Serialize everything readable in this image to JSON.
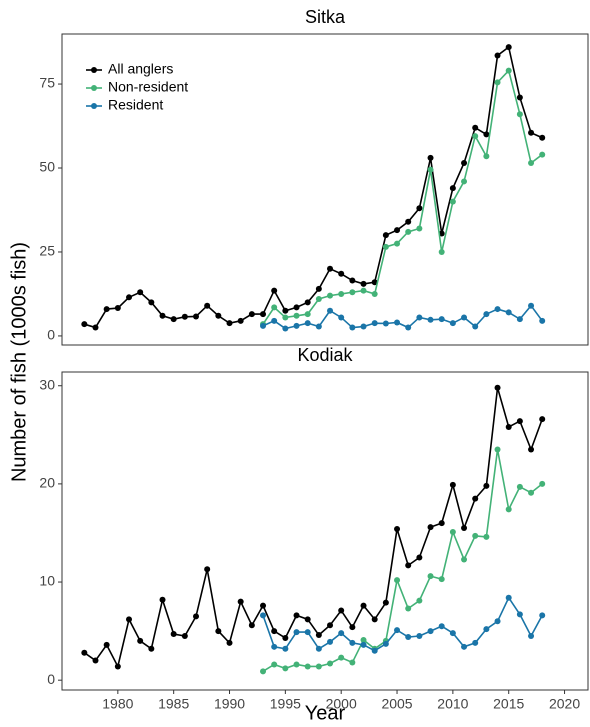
{
  "ylabel": "Number of fish (1000s fish)",
  "chart_data": [
    {
      "type": "line",
      "title": "Sitka",
      "legend": "top-left",
      "xlim": [
        1975,
        2022.1
      ],
      "ylim": [
        -2.7,
        89.9
      ],
      "yticks": [
        0,
        25,
        50,
        75
      ],
      "series": [
        {
          "name": "All anglers",
          "color": "#000000",
          "x": [
            1977,
            1978,
            1979,
            1980,
            1981,
            1982,
            1983,
            1984,
            1985,
            1986,
            1987,
            1988,
            1989,
            1990,
            1991,
            1992,
            1993,
            1994,
            1995,
            1996,
            1997,
            1998,
            1999,
            2000,
            2001,
            2002,
            2003,
            2004,
            2005,
            2006,
            2007,
            2008,
            2009,
            2010,
            2011,
            2012,
            2013,
            2014,
            2015,
            2016,
            2017,
            2018
          ],
          "values": [
            3.5,
            2.5,
            8,
            8.3,
            11.5,
            13,
            10,
            6,
            5,
            5.7,
            5.8,
            9,
            6,
            3.8,
            4.5,
            6.5,
            6.5,
            13.5,
            7.5,
            8.5,
            10,
            14,
            20,
            18.5,
            16.5,
            15.5,
            16,
            30,
            31.5,
            34,
            38,
            53,
            30.5,
            44,
            51.5,
            62,
            60,
            83.5,
            86,
            71,
            60.5,
            59
          ]
        },
        {
          "name": "Non-resident",
          "color": "#43b277",
          "x": [
            1993,
            1994,
            1995,
            1996,
            1997,
            1998,
            1999,
            2000,
            2001,
            2002,
            2003,
            2004,
            2005,
            2006,
            2007,
            2008,
            2009,
            2010,
            2011,
            2012,
            2013,
            2014,
            2015,
            2016,
            2017,
            2018
          ],
          "values": [
            3.5,
            8.5,
            5.5,
            6,
            6.5,
            11,
            12,
            12.5,
            13,
            13.5,
            12.5,
            26.5,
            27.5,
            31,
            32,
            49.5,
            25,
            40,
            46,
            59.5,
            53.5,
            75.5,
            79,
            66,
            51.5,
            54
          ]
        },
        {
          "name": "Resident",
          "color": "#1a75a8",
          "x": [
            1993,
            1994,
            1995,
            1996,
            1997,
            1998,
            1999,
            2000,
            2001,
            2002,
            2003,
            2004,
            2005,
            2006,
            2007,
            2008,
            2009,
            2010,
            2011,
            2012,
            2013,
            2014,
            2015,
            2016,
            2017,
            2018
          ],
          "values": [
            3,
            4.5,
            2.2,
            3,
            3.8,
            2.8,
            7.5,
            5.5,
            2.5,
            2.8,
            3.8,
            3.7,
            4,
            2.5,
            5.5,
            4.8,
            5,
            3.8,
            5.5,
            2.8,
            6.5,
            8,
            7,
            5,
            9,
            4.5
          ]
        }
      ]
    },
    {
      "type": "line",
      "title": "Kodiak",
      "xlabel": "Year",
      "xlim": [
        1975,
        2022.1
      ],
      "xticks": [
        1980,
        1985,
        1990,
        1995,
        2000,
        2005,
        2010,
        2015,
        2020
      ],
      "ylim": [
        -1.0,
        31.4
      ],
      "yticks": [
        0,
        10,
        20,
        30
      ],
      "series": [
        {
          "name": "All anglers",
          "color": "#000000",
          "x": [
            1977,
            1978,
            1979,
            1980,
            1981,
            1982,
            1983,
            1984,
            1985,
            1986,
            1987,
            1988,
            1989,
            1990,
            1991,
            1992,
            1993,
            1994,
            1995,
            1996,
            1997,
            1998,
            1999,
            2000,
            2001,
            2002,
            2003,
            2004,
            2005,
            2006,
            2007,
            2008,
            2009,
            2010,
            2011,
            2012,
            2013,
            2014,
            2015,
            2016,
            2017,
            2018
          ],
          "values": [
            2.8,
            2.0,
            3.6,
            1.4,
            6.2,
            4.0,
            3.2,
            8.2,
            4.7,
            4.5,
            6.5,
            11.3,
            5.0,
            3.8,
            8.0,
            5.6,
            7.6,
            5.0,
            4.3,
            6.6,
            6.2,
            4.6,
            5.6,
            7.1,
            5.4,
            7.6,
            6.2,
            7.9,
            15.4,
            11.7,
            12.5,
            15.6,
            16.0,
            19.9,
            15.5,
            18.5,
            19.8,
            29.8,
            25.8,
            26.4,
            23.5,
            26.6
          ]
        },
        {
          "name": "Non-resident",
          "color": "#43b277",
          "x": [
            1993,
            1994,
            1995,
            1996,
            1997,
            1998,
            1999,
            2000,
            2001,
            2002,
            2003,
            2004,
            2005,
            2006,
            2007,
            2008,
            2009,
            2010,
            2011,
            2012,
            2013,
            2014,
            2015,
            2016,
            2017,
            2018
          ],
          "values": [
            0.9,
            1.6,
            1.2,
            1.6,
            1.4,
            1.4,
            1.7,
            2.3,
            1.8,
            4.1,
            3.2,
            4.0,
            10.2,
            7.3,
            8.1,
            10.6,
            10.3,
            15.1,
            12.3,
            14.7,
            14.6,
            23.5,
            17.4,
            19.7,
            19.1,
            20.0
          ]
        },
        {
          "name": "Resident",
          "color": "#1a75a8",
          "x": [
            1993,
            1994,
            1995,
            1996,
            1997,
            1998,
            1999,
            2000,
            2001,
            2002,
            2003,
            2004,
            2005,
            2006,
            2007,
            2008,
            2009,
            2010,
            2011,
            2012,
            2013,
            2014,
            2015,
            2016,
            2017,
            2018
          ],
          "values": [
            6.6,
            3.4,
            3.2,
            4.9,
            4.9,
            3.2,
            3.9,
            4.8,
            3.8,
            3.6,
            3.0,
            3.7,
            5.1,
            4.4,
            4.5,
            5.0,
            5.5,
            4.8,
            3.4,
            3.8,
            5.2,
            6.0,
            8.4,
            6.7,
            4.5,
            6.6
          ]
        }
      ]
    }
  ]
}
